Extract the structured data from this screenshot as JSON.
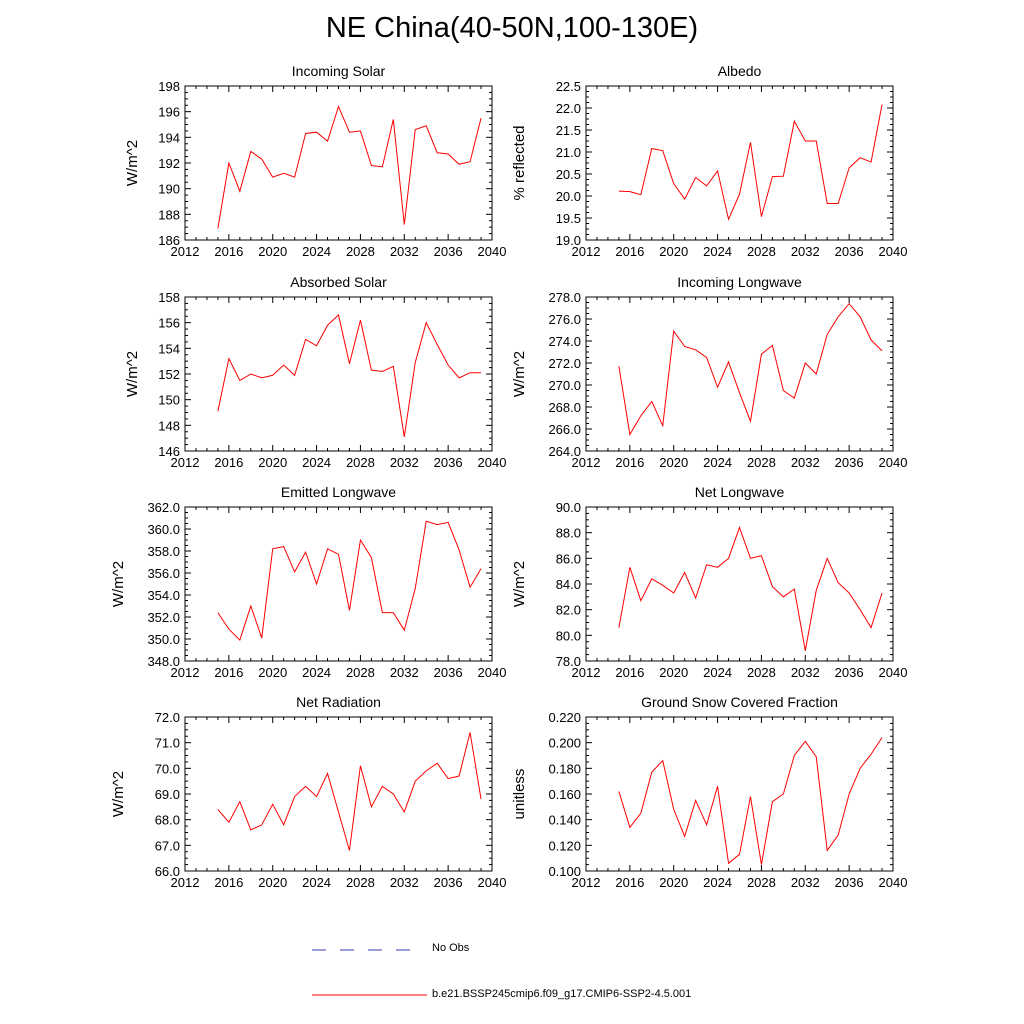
{
  "title": "NE China(40-50N,100-130E)",
  "colors": {
    "model_line": "#ff0000",
    "obs_line": "#3a3ab0",
    "axis": "#000000"
  },
  "legend": {
    "obs_label": "No Obs",
    "model_label": "b.e21.BSSP245cmip6.f09_g17.CMIP6-SSP2-4.5.001"
  },
  "chart_data": [
    {
      "type": "line",
      "title": "Incoming Solar",
      "xlabel": "",
      "ylabel": "W/m^2",
      "xlim": [
        2012,
        2040
      ],
      "ylim": [
        186,
        198
      ],
      "xticks": [
        2012,
        2016,
        2020,
        2024,
        2028,
        2032,
        2036,
        2040
      ],
      "yticks": [
        186,
        188,
        190,
        192,
        194,
        196,
        198
      ],
      "ydecimals": 0,
      "x": [
        2015,
        2016,
        2017,
        2018,
        2019,
        2020,
        2021,
        2022,
        2023,
        2024,
        2025,
        2026,
        2027,
        2028,
        2029,
        2030,
        2031,
        2032,
        2033,
        2034,
        2035,
        2036,
        2037,
        2038,
        2039
      ],
      "series": [
        {
          "name": "b.e21.BSSP245cmip6.f09_g17.CMIP6-SSP2-4.5.001",
          "values": [
            186.9,
            192.0,
            189.8,
            192.9,
            192.3,
            190.9,
            191.2,
            190.9,
            194.3,
            194.4,
            193.7,
            196.4,
            194.4,
            194.5,
            191.8,
            191.7,
            195.4,
            187.2,
            194.6,
            194.9,
            192.8,
            192.7,
            191.9,
            192.1,
            195.5
          ]
        }
      ]
    },
    {
      "type": "line",
      "title": "Albedo",
      "xlabel": "",
      "ylabel": "% reflected",
      "xlim": [
        2012,
        2040
      ],
      "ylim": [
        19.0,
        22.5
      ],
      "xticks": [
        2012,
        2016,
        2020,
        2024,
        2028,
        2032,
        2036,
        2040
      ],
      "yticks": [
        19.0,
        19.5,
        20.0,
        20.5,
        21.0,
        21.5,
        22.0,
        22.5
      ],
      "ydecimals": 1,
      "x": [
        2015,
        2016,
        2017,
        2018,
        2019,
        2020,
        2021,
        2022,
        2023,
        2024,
        2025,
        2026,
        2027,
        2028,
        2029,
        2030,
        2031,
        2032,
        2033,
        2034,
        2035,
        2036,
        2037,
        2038,
        2039
      ],
      "series": [
        {
          "name": "b.e21.BSSP245cmip6.f09_g17.CMIP6-SSP2-4.5.001",
          "values": [
            20.11,
            20.1,
            20.03,
            21.08,
            21.03,
            20.28,
            19.93,
            20.42,
            20.23,
            20.57,
            19.47,
            20.04,
            21.22,
            19.53,
            20.44,
            20.45,
            21.7,
            21.25,
            21.25,
            19.83,
            19.83,
            20.64,
            20.87,
            20.77,
            22.08
          ]
        }
      ]
    },
    {
      "type": "line",
      "title": "Absorbed Solar",
      "xlabel": "",
      "ylabel": "W/m^2",
      "xlim": [
        2012,
        2040
      ],
      "ylim": [
        146,
        158
      ],
      "xticks": [
        2012,
        2016,
        2020,
        2024,
        2028,
        2032,
        2036,
        2040
      ],
      "yticks": [
        146,
        148,
        150,
        152,
        154,
        156,
        158
      ],
      "ydecimals": 0,
      "x": [
        2015,
        2016,
        2017,
        2018,
        2019,
        2020,
        2021,
        2022,
        2023,
        2024,
        2025,
        2026,
        2027,
        2028,
        2029,
        2030,
        2031,
        2032,
        2033,
        2034,
        2035,
        2036,
        2037,
        2038,
        2039
      ],
      "series": [
        {
          "name": "b.e21.BSSP245cmip6.f09_g17.CMIP6-SSP2-4.5.001",
          "values": [
            149.1,
            153.2,
            151.5,
            152.0,
            151.7,
            151.9,
            152.7,
            151.9,
            154.7,
            154.2,
            155.8,
            156.6,
            152.8,
            156.2,
            152.3,
            152.2,
            152.6,
            147.1,
            152.9,
            156.0,
            154.3,
            152.7,
            151.7,
            152.1,
            152.1
          ]
        }
      ]
    },
    {
      "type": "line",
      "title": "Incoming Longwave",
      "xlabel": "",
      "ylabel": "W/m^2",
      "xlim": [
        2012,
        2040
      ],
      "ylim": [
        264.0,
        278.0
      ],
      "xticks": [
        2012,
        2016,
        2020,
        2024,
        2028,
        2032,
        2036,
        2040
      ],
      "yticks": [
        264.0,
        266.0,
        268.0,
        270.0,
        272.0,
        274.0,
        276.0,
        278.0
      ],
      "ydecimals": 1,
      "x": [
        2015,
        2016,
        2017,
        2018,
        2019,
        2020,
        2021,
        2022,
        2023,
        2024,
        2025,
        2026,
        2027,
        2028,
        2029,
        2030,
        2031,
        2032,
        2033,
        2034,
        2035,
        2036,
        2037,
        2038,
        2039
      ],
      "series": [
        {
          "name": "b.e21.BSSP245cmip6.f09_g17.CMIP6-SSP2-4.5.001",
          "values": [
            271.7,
            265.5,
            267.2,
            268.5,
            266.3,
            274.9,
            273.5,
            273.2,
            272.5,
            269.8,
            272.1,
            269.3,
            266.7,
            272.8,
            273.6,
            269.5,
            268.8,
            272.0,
            271.0,
            274.6,
            276.2,
            277.4,
            276.2,
            274.1,
            273.1
          ]
        }
      ]
    },
    {
      "type": "line",
      "title": "Emitted Longwave",
      "xlabel": "",
      "ylabel": "W/m^2",
      "xlim": [
        2012,
        2040
      ],
      "ylim": [
        348.0,
        362.0
      ],
      "xticks": [
        2012,
        2016,
        2020,
        2024,
        2028,
        2032,
        2036,
        2040
      ],
      "yticks": [
        348.0,
        350.0,
        352.0,
        354.0,
        356.0,
        358.0,
        360.0,
        362.0
      ],
      "ydecimals": 1,
      "x": [
        2015,
        2016,
        2017,
        2018,
        2019,
        2020,
        2021,
        2022,
        2023,
        2024,
        2025,
        2026,
        2027,
        2028,
        2029,
        2030,
        2031,
        2032,
        2033,
        2034,
        2035,
        2036,
        2037,
        2038,
        2039
      ],
      "series": [
        {
          "name": "b.e21.BSSP245cmip6.f09_g17.CMIP6-SSP2-4.5.001",
          "values": [
            352.4,
            350.9,
            349.9,
            353.0,
            350.1,
            358.2,
            358.4,
            356.1,
            357.9,
            355.0,
            358.2,
            357.7,
            352.6,
            359.0,
            357.4,
            352.4,
            352.4,
            350.8,
            354.6,
            360.7,
            360.4,
            360.6,
            358.1,
            354.7,
            356.4
          ]
        }
      ]
    },
    {
      "type": "line",
      "title": "Net Longwave",
      "xlabel": "",
      "ylabel": "W/m^2",
      "xlim": [
        2012,
        2040
      ],
      "ylim": [
        78.0,
        90.0
      ],
      "xticks": [
        2012,
        2016,
        2020,
        2024,
        2028,
        2032,
        2036,
        2040
      ],
      "yticks": [
        78.0,
        80.0,
        82.0,
        84.0,
        86.0,
        88.0,
        90.0
      ],
      "ydecimals": 1,
      "x": [
        2015,
        2016,
        2017,
        2018,
        2019,
        2020,
        2021,
        2022,
        2023,
        2024,
        2025,
        2026,
        2027,
        2028,
        2029,
        2030,
        2031,
        2032,
        2033,
        2034,
        2035,
        2036,
        2037,
        2038,
        2039
      ],
      "series": [
        {
          "name": "b.e21.BSSP245cmip6.f09_g17.CMIP6-SSP2-4.5.001",
          "values": [
            80.6,
            85.3,
            82.7,
            84.4,
            83.9,
            83.3,
            84.9,
            82.9,
            85.5,
            85.3,
            86.0,
            88.4,
            86.0,
            86.2,
            83.8,
            83.0,
            83.6,
            78.8,
            83.5,
            86.0,
            84.1,
            83.3,
            82.0,
            80.6,
            83.3
          ]
        }
      ]
    },
    {
      "type": "line",
      "title": "Net Radiation",
      "xlabel": "",
      "ylabel": "W/m^2",
      "xlim": [
        2012,
        2040
      ],
      "ylim": [
        66.0,
        72.0
      ],
      "xticks": [
        2012,
        2016,
        2020,
        2024,
        2028,
        2032,
        2036,
        2040
      ],
      "yticks": [
        66.0,
        67.0,
        68.0,
        69.0,
        70.0,
        71.0,
        72.0
      ],
      "ydecimals": 1,
      "x": [
        2015,
        2016,
        2017,
        2018,
        2019,
        2020,
        2021,
        2022,
        2023,
        2024,
        2025,
        2026,
        2027,
        2028,
        2029,
        2030,
        2031,
        2032,
        2033,
        2034,
        2035,
        2036,
        2037,
        2038,
        2039
      ],
      "series": [
        {
          "name": "b.e21.BSSP245cmip6.f09_g17.CMIP6-SSP2-4.5.001",
          "values": [
            68.4,
            67.9,
            68.7,
            67.6,
            67.8,
            68.6,
            67.8,
            68.9,
            69.3,
            68.9,
            69.8,
            68.3,
            66.8,
            70.1,
            68.5,
            69.3,
            69.0,
            68.3,
            69.5,
            69.9,
            70.2,
            69.6,
            69.7,
            71.4,
            68.8
          ]
        }
      ]
    },
    {
      "type": "line",
      "title": "Ground Snow Covered Fraction",
      "xlabel": "",
      "ylabel": "unitless",
      "xlim": [
        2012,
        2040
      ],
      "ylim": [
        0.1,
        0.22
      ],
      "xticks": [
        2012,
        2016,
        2020,
        2024,
        2028,
        2032,
        2036,
        2040
      ],
      "yticks": [
        0.1,
        0.12,
        0.14,
        0.16,
        0.18,
        0.2,
        0.22
      ],
      "ydecimals": 3,
      "x": [
        2015,
        2016,
        2017,
        2018,
        2019,
        2020,
        2021,
        2022,
        2023,
        2024,
        2025,
        2026,
        2027,
        2028,
        2029,
        2030,
        2031,
        2032,
        2033,
        2034,
        2035,
        2036,
        2037,
        2038,
        2039
      ],
      "series": [
        {
          "name": "b.e21.BSSP245cmip6.f09_g17.CMIP6-SSP2-4.5.001",
          "values": [
            0.162,
            0.134,
            0.145,
            0.177,
            0.186,
            0.148,
            0.127,
            0.155,
            0.136,
            0.166,
            0.106,
            0.113,
            0.158,
            0.105,
            0.154,
            0.16,
            0.19,
            0.201,
            0.189,
            0.116,
            0.128,
            0.16,
            0.18,
            0.191,
            0.204
          ]
        }
      ]
    }
  ]
}
